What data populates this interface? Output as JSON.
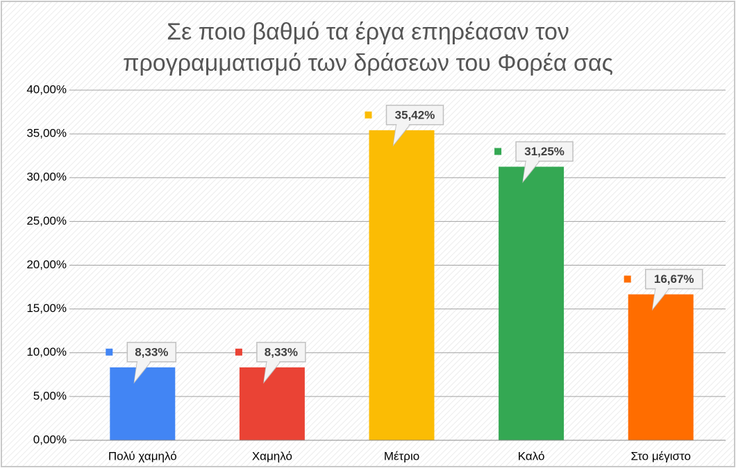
{
  "chart_data": {
    "type": "bar",
    "title": [
      "Σε ποιο βαθμό τα έργα επηρέασαν τον",
      "προγραμματισμό των δράσεων του Φορέα σας"
    ],
    "categories": [
      "Πολύ χαμηλό",
      "Χαμηλό",
      "Μέτριο",
      "Καλό",
      "Στο μέγιστο"
    ],
    "values": [
      8.33,
      8.33,
      35.42,
      31.25,
      16.67
    ],
    "value_labels": [
      "8,33%",
      "8,33%",
      "35,42%",
      "31,25%",
      "16,67%"
    ],
    "colors": [
      "#4285f4",
      "#ea4335",
      "#fbbc04",
      "#34a853",
      "#ff6d00"
    ],
    "ylim": [
      0,
      40
    ],
    "yticks": [
      {
        "value": 0,
        "label": "0,00%"
      },
      {
        "value": 5,
        "label": "5,00%"
      },
      {
        "value": 10,
        "label": "10,00%"
      },
      {
        "value": 15,
        "label": "15,00%"
      },
      {
        "value": 20,
        "label": "20,00%"
      },
      {
        "value": 25,
        "label": "25,00%"
      },
      {
        "value": 30,
        "label": "30,00%"
      },
      {
        "value": 35,
        "label": "35,00%"
      },
      {
        "value": 40,
        "label": "40,00%"
      }
    ],
    "grid": true
  }
}
